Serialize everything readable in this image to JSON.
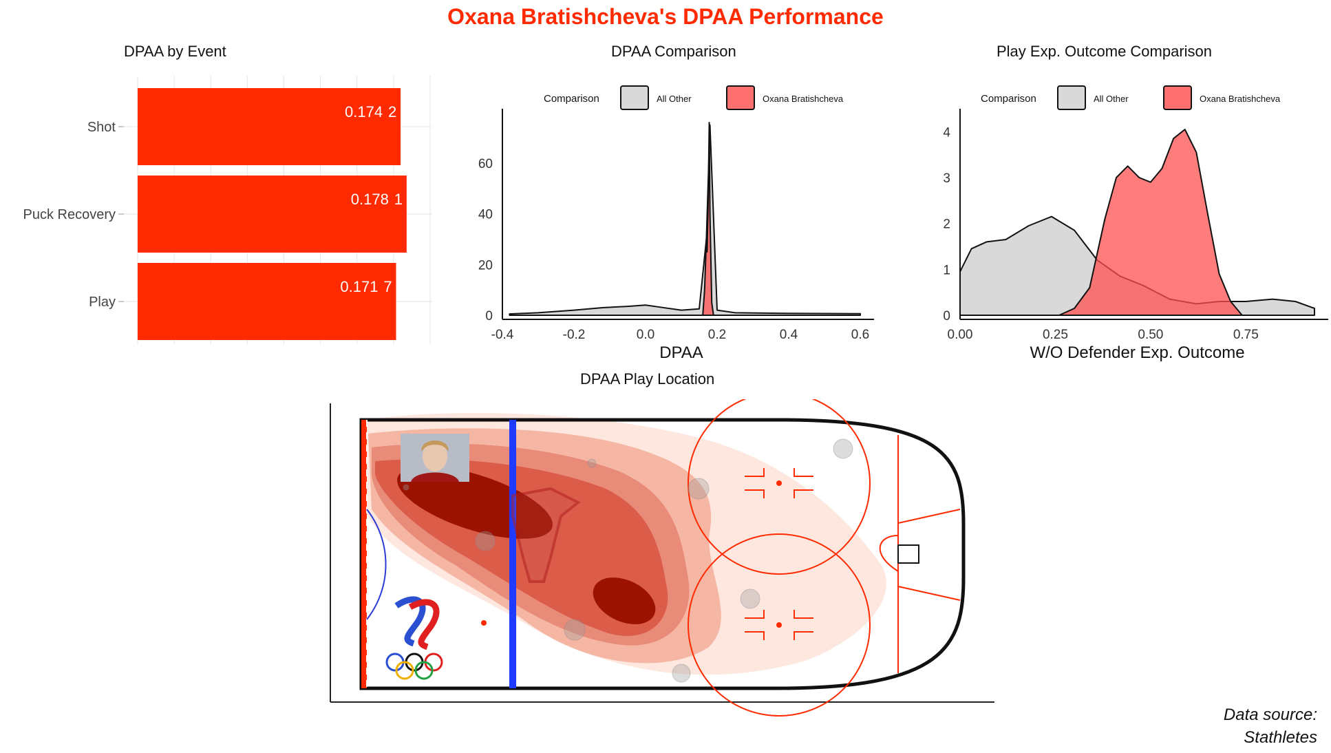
{
  "title": "Oxana Bratishcheva's DPAA Performance",
  "colors": {
    "accent": "#ff2a00",
    "player": "#ff5050",
    "other": "#cccccc",
    "dark_red": "#9b1200",
    "blue_line": "#1f3bff"
  },
  "source_lines": [
    "Data source:",
    "Stathletes"
  ],
  "chart_data": [
    {
      "type": "bar",
      "orientation": "horizontal",
      "title": "DPAA by Event",
      "categories": [
        "Shot",
        "Puck Recovery",
        "Play"
      ],
      "values": [
        0.174,
        0.178,
        0.171
      ],
      "value_labels": [
        "0.174",
        "0.178",
        "0.171"
      ],
      "count_labels": [
        "2",
        "1",
        "7"
      ],
      "bar_color": "#ff2a00",
      "grid": true
    },
    {
      "type": "area",
      "subtype": "density",
      "title": "DPAA Comparison",
      "xlabel": "DPAA",
      "ylabel": "",
      "xlim": [
        -0.4,
        0.6
      ],
      "ylim": [
        0,
        76
      ],
      "x_ticks": [
        "-0.4",
        "-0.2",
        "0.0",
        "0.2",
        "0.4",
        "0.6"
      ],
      "y_ticks": [
        "0",
        "20",
        "40",
        "60"
      ],
      "legend": {
        "title": "Comparison",
        "placement": "top",
        "items": [
          "All Other",
          "Oxana Bratishcheva"
        ]
      },
      "series": [
        {
          "name": "All Other",
          "x": [
            -0.38,
            -0.3,
            -0.2,
            -0.12,
            -0.05,
            0.0,
            0.05,
            0.1,
            0.15,
            0.17,
            0.18,
            0.2,
            0.25,
            0.35,
            0.45,
            0.6
          ],
          "values": [
            0.5,
            1,
            2,
            3,
            3.5,
            4,
            3,
            2,
            2.5,
            30,
            75,
            2,
            1,
            0.8,
            0.7,
            0.6
          ]
        },
        {
          "name": "Oxana Bratishcheva",
          "x": [
            0.16,
            0.165,
            0.17,
            0.172,
            0.175,
            0.178,
            0.18,
            0.185,
            0.19
          ],
          "values": [
            0,
            10,
            30,
            25,
            45,
            76,
            40,
            5,
            0
          ]
        }
      ]
    },
    {
      "type": "area",
      "subtype": "density",
      "title": "Play Exp. Outcome Comparison",
      "xlabel": "W/O Defender Exp. Outcome",
      "ylabel": "",
      "xlim": [
        0,
        0.93
      ],
      "ylim": [
        0,
        4.2
      ],
      "x_ticks": [
        "0.00",
        "0.25",
        "0.50",
        "0.75"
      ],
      "y_ticks": [
        "0",
        "1",
        "2",
        "3",
        "4"
      ],
      "legend": {
        "title": "Comparison",
        "placement": "top",
        "items": [
          "All Other",
          "Oxana Bratishcheva"
        ]
      },
      "series": [
        {
          "name": "All Other",
          "x": [
            0.0,
            0.03,
            0.07,
            0.12,
            0.18,
            0.24,
            0.3,
            0.36,
            0.42,
            0.48,
            0.55,
            0.62,
            0.68,
            0.75,
            0.82,
            0.88,
            0.93
          ],
          "values": [
            0.95,
            1.45,
            1.6,
            1.65,
            1.95,
            2.15,
            1.85,
            1.2,
            0.85,
            0.65,
            0.35,
            0.25,
            0.3,
            0.3,
            0.35,
            0.3,
            0.15
          ]
        },
        {
          "name": "Oxana Bratishcheva",
          "x": [
            0.26,
            0.3,
            0.34,
            0.38,
            0.41,
            0.44,
            0.47,
            0.5,
            0.53,
            0.56,
            0.59,
            0.62,
            0.65,
            0.68,
            0.71,
            0.74
          ],
          "values": [
            0,
            0.15,
            0.6,
            2.1,
            3.0,
            3.25,
            3.0,
            2.9,
            3.2,
            3.85,
            4.05,
            3.55,
            2.2,
            0.9,
            0.3,
            0
          ]
        }
      ]
    },
    {
      "type": "heatmap",
      "title": "DPAA Play Location",
      "description_free": true
    }
  ]
}
